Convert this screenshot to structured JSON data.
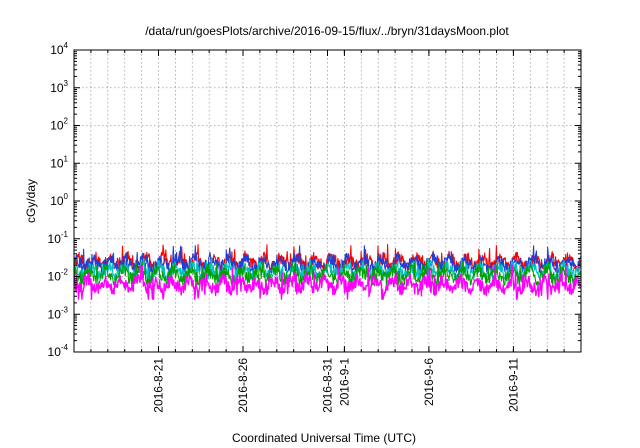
{
  "chart_data": {
    "type": "line",
    "title": "/data/run/goesPlots/archive/2016-09-15/flux/../bryn/31daysMoon.plot",
    "xlabel": "Coordinated Universal Time (UTC)",
    "ylabel": "cGy/day",
    "yscale": "log",
    "ylim": [
      0.0001,
      10000
    ],
    "y_ticks": [
      {
        "base": "10",
        "exp": "-4",
        "value": 0.0001
      },
      {
        "base": "10",
        "exp": "-3",
        "value": 0.001
      },
      {
        "base": "10",
        "exp": "-2",
        "value": 0.01
      },
      {
        "base": "10",
        "exp": "-1",
        "value": 0.1
      },
      {
        "base": "10",
        "exp": "0",
        "value": 1
      },
      {
        "base": "10",
        "exp": "1",
        "value": 10
      },
      {
        "base": "10",
        "exp": "2",
        "value": 100
      },
      {
        "base": "10",
        "exp": "3",
        "value": 1000
      },
      {
        "base": "10",
        "exp": "4",
        "value": 10000
      }
    ],
    "xlim": [
      "2016-08-16",
      "2016-09-15"
    ],
    "x_ticks": [
      "2016-8-21",
      "2016-8-26",
      "2016-8-31",
      "2016-9-1",
      "2016-9-6",
      "2016-9-11"
    ],
    "x_tick_values": [
      "2016-08-21",
      "2016-08-26",
      "2016-08-31",
      "2016-09-01",
      "2016-09-06",
      "2016-09-11"
    ],
    "grid": true,
    "series": [
      {
        "color": "#ff0000",
        "typical": 0.024,
        "min": 0.015,
        "max": 0.07
      },
      {
        "color": "#1e3fd8",
        "typical": 0.022,
        "min": 0.013,
        "max": 0.065
      },
      {
        "color": "#00c0c0",
        "typical": 0.014,
        "min": 0.008,
        "max": 0.03
      },
      {
        "color": "#00a000",
        "typical": 0.011,
        "min": 0.006,
        "max": 0.025
      },
      {
        "color": "#ff00ff",
        "typical": 0.006,
        "min": 0.0025,
        "max": 0.02
      }
    ]
  }
}
